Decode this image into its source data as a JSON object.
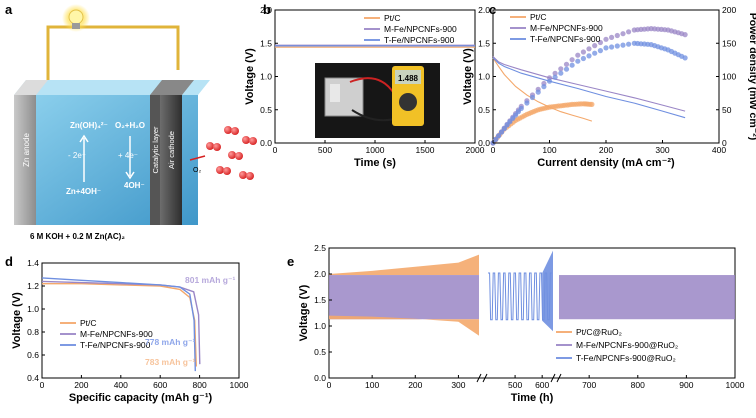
{
  "panels": {
    "a": {
      "letter": "a",
      "zn_anode": "Zn anode",
      "catalytic_layer": "Catalytic layer",
      "air_cathode": "Air cathode",
      "zincate": "Zn(OH)₄²⁻",
      "o2_h2o": "O₂+H₂O",
      "minus_2e": "- 2e⁻",
      "plus_4e": "+ 4e⁻",
      "zn_4oh": "Zn+4OH⁻",
      "four_oh": "4OH⁻",
      "o2": "O₂",
      "electrolyte": "6 M KOH + 0.2 M Zn(AC)₂"
    },
    "b": {
      "letter": "b",
      "meter_reading": "1.488"
    },
    "c": {
      "letter": "c"
    },
    "d": {
      "letter": "d"
    },
    "e": {
      "letter": "e"
    }
  },
  "colors": {
    "ptc": "#f4a86b",
    "mfe": "#9a86c6",
    "tfe": "#6f8fe0"
  },
  "chart_data": [
    {
      "panel": "b",
      "type": "line",
      "xlabel": "Time (s)",
      "ylabel": "Voltage (V)",
      "xlim": [
        0,
        2000
      ],
      "ylim": [
        0,
        2.0
      ],
      "xticks": [
        "0",
        "500",
        "1000",
        "1500",
        "2000"
      ],
      "yticks": [
        "0.0",
        "0.5",
        "1.0",
        "1.5",
        "2.0"
      ],
      "legend_position": "top-right",
      "series": [
        {
          "name": "Pt/C",
          "x": [
            0,
            2000
          ],
          "y": [
            1.44,
            1.44
          ]
        },
        {
          "name": "M-Fe/NPCNFs-900",
          "x": [
            0,
            2000
          ],
          "y": [
            1.47,
            1.47
          ]
        },
        {
          "name": "T-Fe/NPCNFs-900",
          "x": [
            0,
            2000
          ],
          "y": [
            1.46,
            1.46
          ]
        }
      ]
    },
    {
      "panel": "c",
      "type": "line",
      "xlabel": "Current density (mA cm⁻²)",
      "ylabel": "Voltage (V)",
      "y2label": "Power density (mW cm⁻²)",
      "xlim": [
        0,
        400
      ],
      "ylim": [
        0,
        2.0
      ],
      "y2lim": [
        0,
        200
      ],
      "xticks": [
        "0",
        "100",
        "200",
        "300",
        "400"
      ],
      "yticks": [
        "0.0",
        "0.5",
        "1.0",
        "1.5",
        "2.0"
      ],
      "y2ticks": [
        "0",
        "50",
        "100",
        "150",
        "200"
      ],
      "legend_position": "top-left",
      "series": [
        {
          "name": "Pt/C",
          "x": [
            0,
            10,
            20,
            40,
            60,
            80,
            100,
            120,
            140,
            160,
            175
          ],
          "y": [
            1.28,
            1.15,
            1.03,
            0.85,
            0.72,
            0.62,
            0.54,
            0.47,
            0.42,
            0.37,
            0.33
          ]
        },
        {
          "name": "M-Fe/NPCNFs-900",
          "x": [
            0,
            10,
            20,
            50,
            100,
            150,
            200,
            250,
            300,
            340
          ],
          "y": [
            1.3,
            1.22,
            1.18,
            1.1,
            0.98,
            0.88,
            0.78,
            0.68,
            0.57,
            0.48
          ]
        },
        {
          "name": "T-Fe/NPCNFs-900",
          "x": [
            0,
            10,
            20,
            50,
            100,
            150,
            200,
            250,
            300,
            340
          ],
          "y": [
            1.28,
            1.2,
            1.15,
            1.05,
            0.93,
            0.82,
            0.7,
            0.6,
            0.48,
            0.38
          ]
        }
      ],
      "power_series": [
        {
          "name": "Pt/C",
          "x": [
            0,
            20,
            40,
            60,
            80,
            100,
            120,
            140,
            160,
            175
          ],
          "y": [
            0,
            21,
            34,
            43,
            50,
            54,
            56,
            58,
            59,
            58
          ]
        },
        {
          "name": "M-Fe/NPCNFs-900",
          "x": [
            0,
            25,
            50,
            100,
            150,
            200,
            250,
            280,
            310,
            340
          ],
          "y": [
            0,
            28,
            55,
            98,
            132,
            156,
            170,
            172,
            170,
            163
          ]
        },
        {
          "name": "T-Fe/NPCNFs-900",
          "x": [
            0,
            25,
            50,
            100,
            150,
            200,
            250,
            280,
            310,
            340
          ],
          "y": [
            0,
            27,
            52,
            93,
            123,
            143,
            150,
            148,
            140,
            128
          ]
        }
      ]
    },
    {
      "panel": "d",
      "type": "line",
      "xlabel": "Specific capacity (mAh g⁻¹)",
      "ylabel": "Voltage (V)",
      "xlim": [
        0,
        1000
      ],
      "ylim": [
        0.4,
        1.4
      ],
      "xticks": [
        "0",
        "200",
        "400",
        "600",
        "800",
        "1000"
      ],
      "yticks": [
        "0.4",
        "0.6",
        "0.8",
        "1.0",
        "1.2",
        "1.4"
      ],
      "legend_position": "center-left",
      "annotations": [
        "801 mAh g⁻¹",
        "778 mAh g⁻¹",
        "783 mAh g⁻¹"
      ],
      "series": [
        {
          "name": "Pt/C",
          "x": [
            0,
            200,
            400,
            600,
            700,
            750,
            775,
            783
          ],
          "y": [
            1.22,
            1.22,
            1.21,
            1.2,
            1.17,
            1.1,
            0.9,
            0.5
          ]
        },
        {
          "name": "M-Fe/NPCNFs-900",
          "x": [
            0,
            200,
            400,
            600,
            700,
            770,
            795,
            801
          ],
          "y": [
            1.24,
            1.23,
            1.22,
            1.21,
            1.19,
            1.15,
            0.95,
            0.52
          ]
        },
        {
          "name": "T-Fe/NPCNFs-900",
          "x": [
            0,
            200,
            400,
            600,
            700,
            750,
            772,
            778
          ],
          "y": [
            1.27,
            1.25,
            1.23,
            1.21,
            1.19,
            1.13,
            0.9,
            0.46
          ]
        }
      ]
    },
    {
      "panel": "e",
      "type": "line",
      "xlabel": "Time (h)",
      "ylabel": "Voltage (V)",
      "xlim": [
        0,
        1000
      ],
      "ylim": [
        0,
        2.5
      ],
      "xticks": [
        "0",
        "100",
        "200",
        "300",
        "500",
        "600",
        "700",
        "800",
        "900",
        "1000"
      ],
      "yticks": [
        "0.0",
        "0.5",
        "1.0",
        "1.5",
        "2.0",
        "2.5"
      ],
      "legend_position": "bottom-right",
      "series": [
        {
          "name": "Pt/C@RuO₂",
          "x": [
            0,
            100,
            200,
            300,
            350
          ],
          "charge": [
            2.0,
            2.06,
            2.14,
            2.22,
            2.38
          ],
          "discharge": [
            1.2,
            1.18,
            1.14,
            1.08,
            0.8
          ]
        },
        {
          "name": "M-Fe/NPCNFs-900@RuO₂",
          "x": [
            0,
            350,
            630,
            1000
          ],
          "charge": [
            1.98,
            1.98,
            1.98,
            1.98
          ],
          "discharge": [
            1.13,
            1.13,
            1.13,
            1.13
          ]
        },
        {
          "name": "T-Fe/NPCNFs-900@RuO₂",
          "x": [
            400,
            500,
            600,
            640
          ],
          "charge": [
            2.02,
            2.02,
            2.04,
            2.45
          ],
          "discharge": [
            1.12,
            1.12,
            1.1,
            0.9
          ]
        }
      ]
    }
  ]
}
